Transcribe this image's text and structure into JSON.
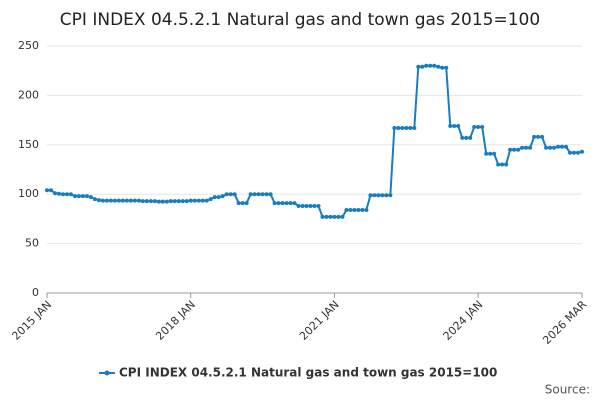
{
  "chart_data": {
    "type": "line",
    "title": "CPI INDEX 04.5.2.1 Natural gas and town gas 2015=100",
    "source": "Source:",
    "categories": [
      "2015 JAN",
      null,
      null,
      null,
      null,
      null,
      null,
      null,
      null,
      null,
      null,
      null,
      null,
      null,
      null,
      null,
      null,
      null,
      null,
      null,
      null,
      null,
      null,
      null,
      null,
      null,
      null,
      null,
      null,
      null,
      null,
      null,
      null,
      null,
      null,
      null,
      "2018 JAN",
      null,
      null,
      null,
      null,
      null,
      null,
      null,
      null,
      null,
      null,
      null,
      null,
      null,
      null,
      null,
      null,
      null,
      null,
      null,
      null,
      null,
      null,
      null,
      null,
      null,
      null,
      null,
      null,
      null,
      null,
      null,
      null,
      null,
      null,
      null,
      "2021 JAN",
      null,
      null,
      null,
      null,
      null,
      null,
      null,
      null,
      null,
      null,
      null,
      null,
      null,
      null,
      null,
      null,
      null,
      null,
      null,
      null,
      null,
      null,
      null,
      null,
      null,
      null,
      null,
      null,
      null,
      null,
      null,
      null,
      null,
      null,
      null,
      "2024 JAN",
      null,
      null,
      null,
      null,
      null,
      null,
      null,
      null,
      null,
      null,
      null,
      null,
      null,
      null,
      null,
      null,
      null,
      null,
      null,
      null,
      null,
      null,
      null,
      null,
      null,
      "2026 MAR"
    ],
    "series": [
      {
        "name": "CPI INDEX 04.5.2.1 Natural gas and town gas 2015=100",
        "color": "#1a7dc0",
        "values": [
          104,
          104,
          101,
          100.5,
          100,
          100,
          100,
          98,
          98,
          98,
          98,
          97,
          95,
          94,
          93.5,
          93.5,
          93.5,
          93.5,
          93.5,
          93.5,
          93.5,
          93.5,
          93.5,
          93.5,
          93,
          93,
          93,
          93,
          92.5,
          92.5,
          92.5,
          93,
          93,
          93,
          93,
          93,
          93.5,
          93.5,
          93.5,
          93.5,
          93.5,
          95,
          97,
          97,
          98,
          100,
          100,
          100,
          91,
          91,
          91,
          100,
          100,
          100,
          100,
          100,
          100,
          91,
          91,
          91,
          91,
          91,
          91,
          88,
          88,
          88,
          88,
          88,
          88,
          77,
          77,
          77,
          77,
          77,
          77,
          84,
          84,
          84,
          84,
          84,
          84,
          99,
          99,
          99,
          99,
          99,
          99,
          167,
          167,
          167,
          167,
          167,
          167,
          229,
          229,
          230,
          230,
          230,
          229,
          228,
          228,
          169,
          169,
          169,
          157,
          157,
          157,
          168,
          168,
          168,
          141,
          141,
          141,
          130,
          130,
          130,
          145,
          145,
          145,
          147,
          147,
          147,
          158,
          158,
          158,
          147,
          147,
          147,
          148,
          148,
          148,
          142,
          142,
          142,
          143
        ]
      }
    ],
    "ylim": [
      0,
      250
    ],
    "yticks": [
      0,
      50,
      100,
      150,
      200,
      250
    ],
    "grid": true
  }
}
